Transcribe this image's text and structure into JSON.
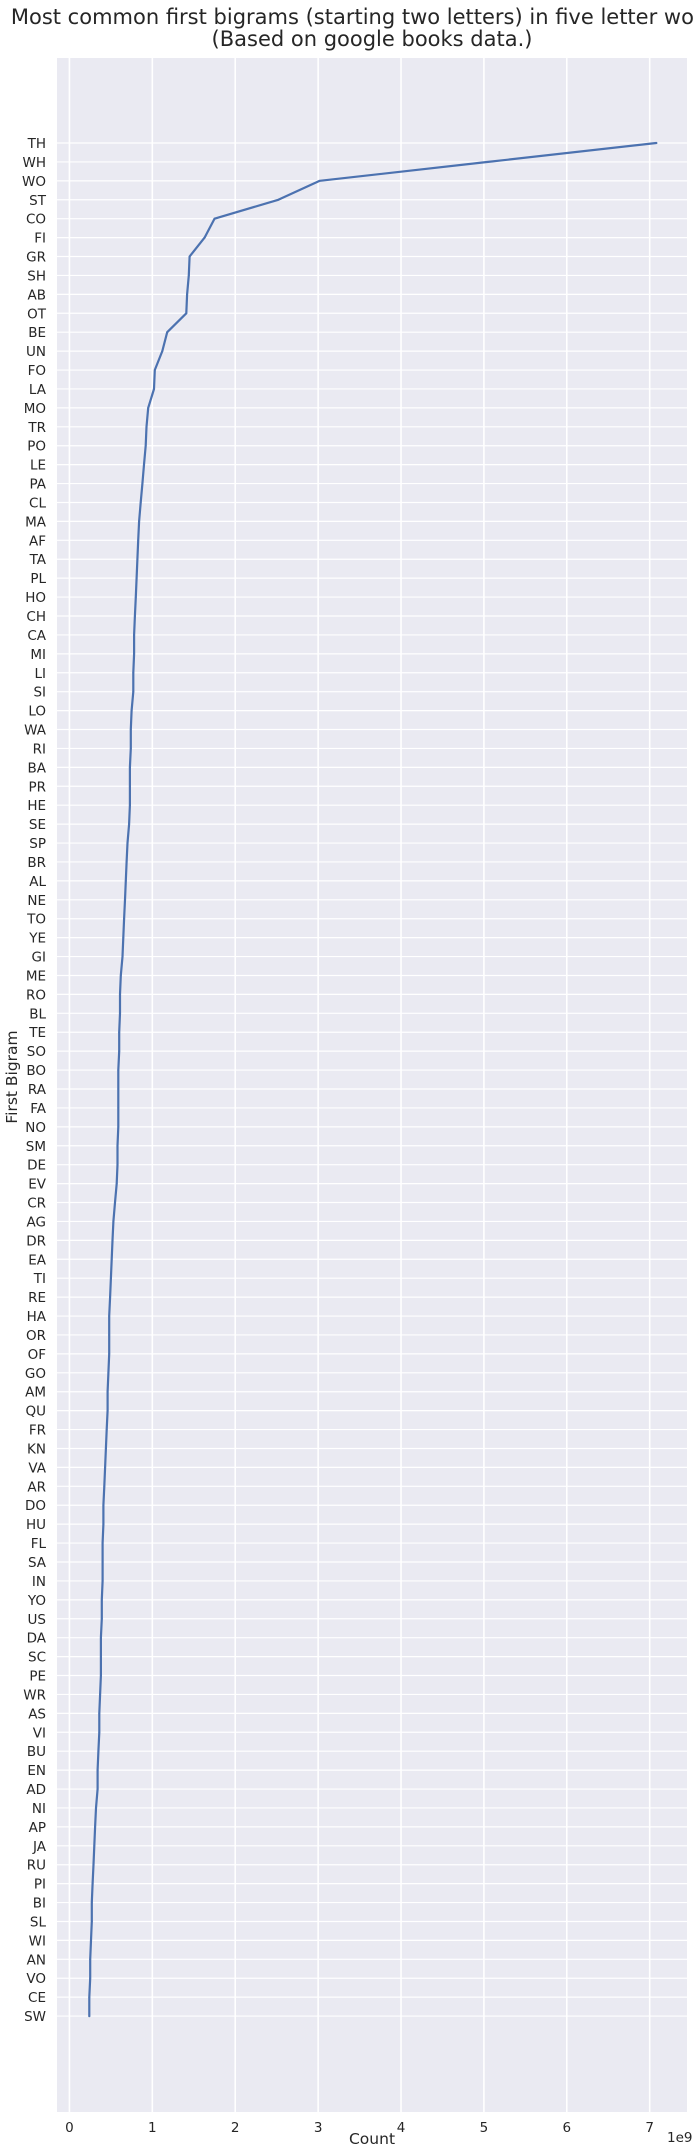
{
  "chart_data": {
    "type": "line",
    "title": "Most common first bigrams (starting two letters) in five letter words.",
    "subtitle": "(Based on google books data.)",
    "xlabel": "Count",
    "ylabel": "First Bigram",
    "x_offset_label": "1e9",
    "xlim": [
      -0.15,
      7.45
    ],
    "x_ticks": [
      0,
      1,
      2,
      3,
      4,
      5,
      6,
      7
    ],
    "x_tick_labels": [
      "0",
      "1",
      "2",
      "3",
      "4",
      "5",
      "6",
      "7"
    ],
    "grid": true,
    "orientation": "horizontal",
    "series": [
      {
        "color": "#4c72b0",
        "categories": [
          "TH",
          "WH",
          "WO",
          "ST",
          "CO",
          "FI",
          "GR",
          "SH",
          "AB",
          "OT",
          "BE",
          "UN",
          "FO",
          "LA",
          "MO",
          "TR",
          "PO",
          "LE",
          "PA",
          "CL",
          "MA",
          "AF",
          "TA",
          "PL",
          "HO",
          "CH",
          "CA",
          "MI",
          "LI",
          "SI",
          "LO",
          "WA",
          "RI",
          "BA",
          "PR",
          "HE",
          "SE",
          "SP",
          "BR",
          "AL",
          "NE",
          "TO",
          "YE",
          "GI",
          "ME",
          "RO",
          "BL",
          "TE",
          "SO",
          "BO",
          "RA",
          "FA",
          "NO",
          "SM",
          "DE",
          "EV",
          "CR",
          "AG",
          "DR",
          "EA",
          "TI",
          "RE",
          "HA",
          "OR",
          "OF",
          "GO",
          "AM",
          "QU",
          "FR",
          "KN",
          "VA",
          "AR",
          "DO",
          "HU",
          "FL",
          "SA",
          "IN",
          "YO",
          "US",
          "DA",
          "SC",
          "PE",
          "WR",
          "AS",
          "VI",
          "BU",
          "EN",
          "AD",
          "NI",
          "AP",
          "JA",
          "RU",
          "PI",
          "BI",
          "SL",
          "WI",
          "AN",
          "VO",
          "CE",
          "SW"
        ],
        "values": [
          7.08,
          5.05,
          3.02,
          2.52,
          1.75,
          1.63,
          1.45,
          1.44,
          1.42,
          1.41,
          1.18,
          1.12,
          1.03,
          1.02,
          0.95,
          0.93,
          0.92,
          0.9,
          0.88,
          0.86,
          0.84,
          0.83,
          0.82,
          0.81,
          0.8,
          0.79,
          0.78,
          0.78,
          0.77,
          0.77,
          0.75,
          0.74,
          0.74,
          0.73,
          0.73,
          0.73,
          0.72,
          0.7,
          0.69,
          0.68,
          0.67,
          0.66,
          0.65,
          0.64,
          0.62,
          0.61,
          0.61,
          0.6,
          0.6,
          0.59,
          0.59,
          0.59,
          0.59,
          0.58,
          0.58,
          0.57,
          0.55,
          0.53,
          0.52,
          0.51,
          0.5,
          0.49,
          0.48,
          0.48,
          0.48,
          0.47,
          0.46,
          0.46,
          0.45,
          0.44,
          0.43,
          0.42,
          0.41,
          0.41,
          0.4,
          0.4,
          0.4,
          0.39,
          0.39,
          0.38,
          0.38,
          0.38,
          0.37,
          0.36,
          0.36,
          0.35,
          0.34,
          0.34,
          0.32,
          0.31,
          0.3,
          0.29,
          0.28,
          0.27,
          0.27,
          0.26,
          0.25,
          0.25,
          0.24,
          0.24
        ]
      }
    ]
  }
}
